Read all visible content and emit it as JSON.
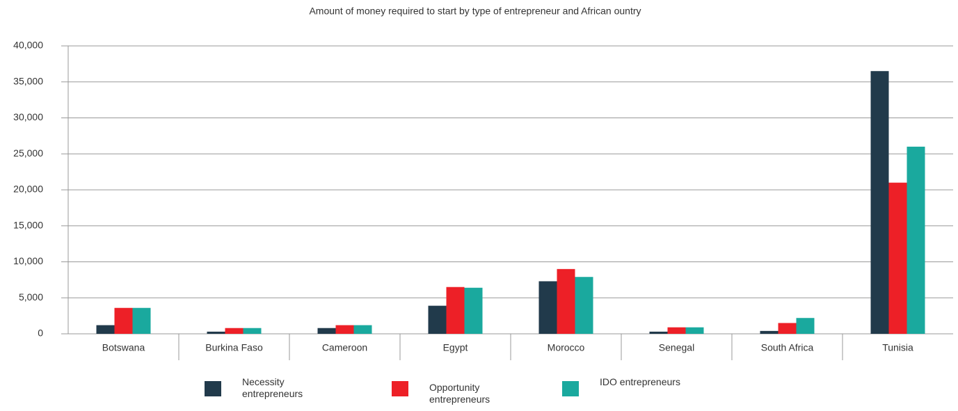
{
  "chart_data": {
    "type": "bar",
    "title": "Amount of money required to start by type of entrepreneur and African ountry",
    "categories": [
      "Botswana",
      "Burkina Faso",
      "Cameroon",
      "Egypt",
      "Morocco",
      "Senegal",
      "South Africa",
      "Tunisia"
    ],
    "series": [
      {
        "name": "Necessity entrepreneurs",
        "color": "#213a4b",
        "values": [
          1200,
          300,
          800,
          3900,
          7300,
          300,
          400,
          36500
        ]
      },
      {
        "name": "Opportunity entrepreneurs",
        "color": "#ed2027",
        "values": [
          3600,
          800,
          1200,
          6500,
          9000,
          900,
          1500,
          21000
        ]
      },
      {
        "name": "IDO entrepreneurs",
        "color": "#1aa99e",
        "values": [
          3600,
          800,
          1200,
          6400,
          7900,
          900,
          2200,
          26000
        ]
      }
    ],
    "ylim": [
      0,
      40000
    ],
    "yticks": [
      0,
      {
        "value": 5000,
        "label": "5,000"
      },
      {
        "value": 10000,
        "label": "10,000"
      },
      {
        "value": 15000,
        "label": "15,000"
      },
      {
        "value": 20000,
        "label": "20,000"
      },
      {
        "value": 25000,
        "label": "25,000"
      },
      {
        "value": 30000,
        "label": "30,000"
      },
      {
        "value": 35000,
        "label": "35,000"
      },
      {
        "value": 40000,
        "label": "40,000"
      }
    ],
    "grid": true
  }
}
